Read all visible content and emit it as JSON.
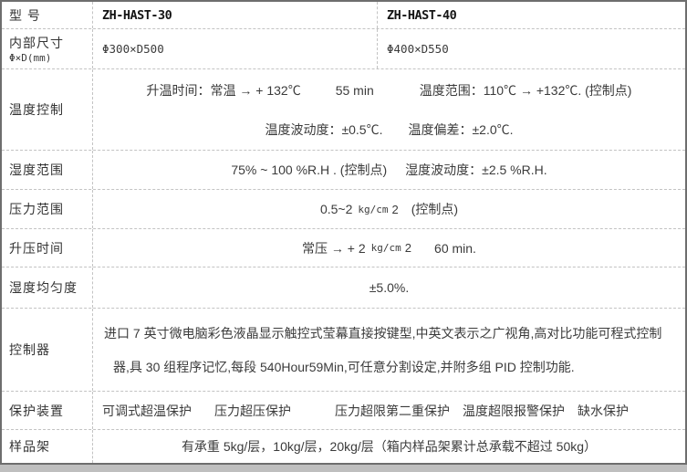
{
  "table": {
    "model_row": {
      "label": "型 号",
      "col1": "ZH-HAST-30",
      "col2": "ZH-HAST-40"
    },
    "size_row": {
      "label_line1": "内部尺寸",
      "label_line2": "Φ×D(mm)",
      "col1": "Φ300×D500",
      "col2": "Φ400×D550"
    },
    "temp_row": {
      "label": "温度控制",
      "rise": "升温时间：常温 → + 132℃",
      "rise_time": "55 min",
      "range": "温度范围：110℃ → +132℃. (控制点)",
      "fluctuation": "温度波动度：±0.5℃.",
      "deviation": "温度偏差：±2.0℃."
    },
    "humidity_row": {
      "label": "湿度范围",
      "range": "75% ~ 100 %R.H . (控制点)",
      "fluctuation": "湿度波动度：±2.5 %R.H."
    },
    "pressure_row": {
      "label": "压力范围",
      "range": "0.5~2",
      "unit": "kg/cm",
      "exponent": "2",
      "note": "(控制点)"
    },
    "pressure_rise_row": {
      "label": "升压时间",
      "prefix": "常压 → + 2",
      "unit": "kg/cm",
      "exponent": "2",
      "duration": "60 min."
    },
    "uniformity_row": {
      "label": "湿度均匀度",
      "value": "±5.0%."
    },
    "controller_row": {
      "label": "控制器",
      "line1": "进口 7 英寸微电脑彩色液晶显示触控式莹幕直接按键型,中英文表示之广视角,高对比功能可程式控制",
      "line2": "器,具 30 组程序记忆,每段 540Hour59Min,可任意分割设定,并附多组 PID 控制功能."
    },
    "protection_row": {
      "label": "保护装置",
      "items": [
        "可调式超温保护",
        "压力超压保护",
        "压力超限第二重保护",
        "温度超限报警保护",
        "缺水保护"
      ]
    },
    "rack_row": {
      "label": "样品架",
      "text": "有承重 5kg/层，10kg/层，20kg/层（箱内样品架累计总承载不超过 50kg）"
    }
  }
}
